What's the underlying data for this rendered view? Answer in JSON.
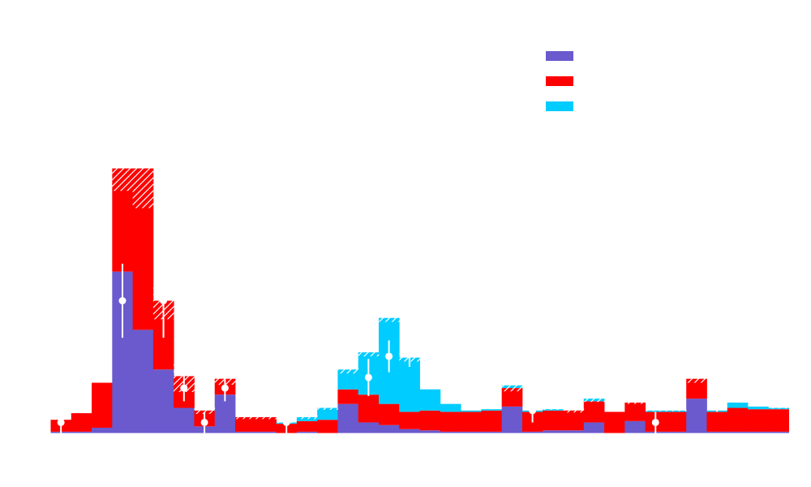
{
  "chart_data": {
    "type": "bar",
    "stacked": true,
    "title": "",
    "xlabel": "",
    "ylabel": "",
    "ylim": [
      0,
      100
    ],
    "legend": {
      "position": "top-right",
      "show_labels": false
    },
    "grid": false,
    "colors": {
      "s1": "#6a5acd",
      "s2": "#ff0000",
      "s3": "#00ccff",
      "points": "#ffffff",
      "hatch": "#ffffff"
    },
    "series": [
      {
        "key": "s1",
        "values": [
          0.5,
          0.5,
          2,
          61,
          39,
          24,
          9.5,
          2.5,
          14.5,
          0.5,
          0.5,
          0,
          0.5,
          0,
          11,
          4,
          3,
          1.5,
          1,
          0.5,
          0.5,
          0.5,
          10,
          0.5,
          1,
          1,
          4,
          0,
          4.5,
          0.5,
          0.5,
          13,
          0.5,
          0.5,
          0.5,
          0.5
        ]
      },
      {
        "key": "s2",
        "values": [
          4.5,
          7,
          17,
          39,
          61,
          26,
          12,
          6,
          6,
          5.5,
          5.5,
          3.5,
          4,
          5,
          5.5,
          10.5,
          8,
          6.5,
          7.5,
          7.5,
          7.5,
          8,
          7,
          7.5,
          7.5,
          7.5,
          8,
          8,
          7,
          7.5,
          7.5,
          7.5,
          7.5,
          9,
          8.5,
          8.5
        ]
      },
      {
        "key": "s3",
        "values": [
          0,
          0,
          0,
          0,
          0,
          0,
          0,
          0,
          0,
          0,
          0,
          0.5,
          1.5,
          4.5,
          7.5,
          16,
          32.5,
          20.5,
          8,
          3,
          0.5,
          0.5,
          1,
          0.5,
          0.5,
          0,
          1,
          0,
          0,
          0.5,
          0.5,
          0,
          0.5,
          2,
          1,
          0.5
        ]
      }
    ],
    "uncertainty_band": [
      0,
      0,
      0,
      17,
      30,
      14,
      12,
      2.5,
      4.5,
      1.5,
      1.5,
      0.5,
      1.5,
      1.5,
      3,
      3,
      3,
      3,
      0,
      0,
      0,
      0,
      4.5,
      0,
      0.5,
      1.5,
      2.5,
      0,
      1,
      0.5,
      0.5,
      3,
      0,
      0,
      0,
      0.5
    ],
    "points": [
      {
        "bin": 0,
        "y": 4,
        "err": 4
      },
      {
        "bin": 3,
        "y": 50,
        "err": 14
      },
      {
        "bin": 5,
        "y": 50,
        "err": 14
      },
      {
        "bin": 6,
        "y": 17,
        "err": 5
      },
      {
        "bin": 7,
        "y": 4,
        "err": 4
      },
      {
        "bin": 8,
        "y": 17,
        "err": 5
      },
      {
        "bin": 9,
        "y": 12.5,
        "err": 4.5
      },
      {
        "bin": 11,
        "y": 4,
        "err": 4
      },
      {
        "bin": 15,
        "y": 21,
        "err": 7
      },
      {
        "bin": 16,
        "y": 29,
        "err": 6
      },
      {
        "bin": 17,
        "y": 37.5,
        "err": 12.5
      },
      {
        "bin": 18,
        "y": 37.5,
        "err": 12.5
      },
      {
        "bin": 23,
        "y": 8.5,
        "err": 4.5
      },
      {
        "bin": 29,
        "y": 4,
        "err": 4
      },
      {
        "bin": 32,
        "y": 12.5,
        "err": 4.5
      }
    ]
  }
}
